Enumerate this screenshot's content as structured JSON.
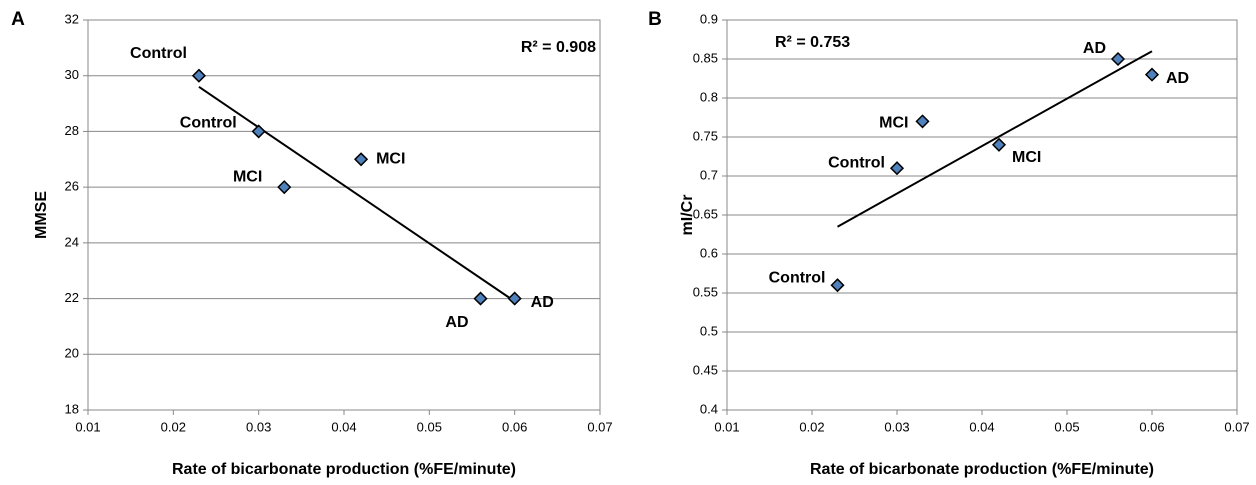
{
  "chart_data": [
    {
      "type": "scatter",
      "panel_label": "A",
      "xlabel": "Rate of bicarbonate production (%FE/minute)",
      "ylabel": "MMSE",
      "annotation": "R² = 0.908",
      "xlim": [
        0.01,
        0.07
      ],
      "xticks": [
        0.01,
        0.02,
        0.03,
        0.04,
        0.05,
        0.06,
        0.07
      ],
      "ylim": [
        18,
        32
      ],
      "yticks": [
        18,
        20,
        22,
        24,
        26,
        28,
        30,
        32
      ],
      "grid": true,
      "color": "#4f81bd",
      "x": [
        0.023,
        0.03,
        0.042,
        0.033,
        0.056,
        0.06
      ],
      "values": [
        30,
        28,
        27,
        26,
        22,
        22
      ],
      "point_labels": [
        "Control",
        "Control",
        "MCI",
        "MCI",
        "AD",
        "AD"
      ],
      "trendline": {
        "x": [
          0.023,
          0.06
        ],
        "values": [
          29.6,
          21.9
        ]
      }
    },
    {
      "type": "scatter",
      "panel_label": "B",
      "xlabel": "Rate of bicarbonate production (%FE/minute)",
      "ylabel": "mI/Cr",
      "annotation": "R² = 0.753",
      "xlim": [
        0.01,
        0.07
      ],
      "xticks": [
        0.01,
        0.02,
        0.03,
        0.04,
        0.05,
        0.06,
        0.07
      ],
      "ylim": [
        0.4,
        0.9
      ],
      "yticks": [
        0.4,
        0.45,
        0.5,
        0.55,
        0.6,
        0.65,
        0.7,
        0.75,
        0.8,
        0.85,
        0.9
      ],
      "grid": true,
      "color": "#4f81bd",
      "x": [
        0.023,
        0.03,
        0.033,
        0.042,
        0.056,
        0.06
      ],
      "values": [
        0.56,
        0.71,
        0.77,
        0.74,
        0.85,
        0.83
      ],
      "point_labels": [
        "Control",
        "Control",
        "MCI",
        "MCI",
        "AD",
        "AD"
      ],
      "trendline": {
        "x": [
          0.023,
          0.06
        ],
        "values": [
          0.635,
          0.86
        ]
      }
    }
  ]
}
